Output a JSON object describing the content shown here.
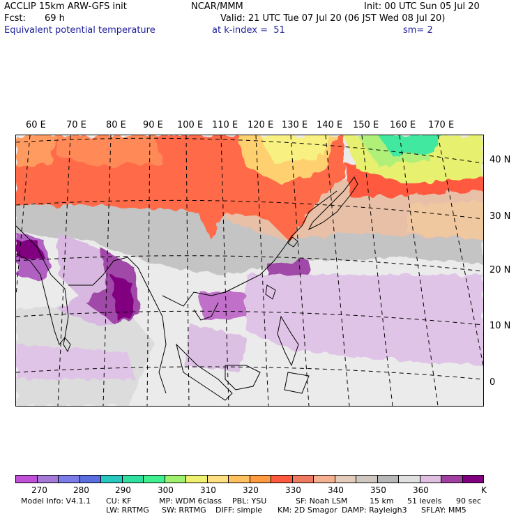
{
  "header": {
    "model": "ACCLIP 15km ARW-GFS init",
    "org": "NCAR/MMM",
    "init": "Init: 00 UTC Sun 05 Jul 20",
    "fcst_label": "Fcst:",
    "fcst_value": "69 h",
    "valid": "Valid: 21 UTC Tue 07 Jul 20 (06 JST Wed 08 Jul 20)",
    "field": "Equivalent potential temperature",
    "level": "at k-index =  51",
    "smooth": "sm= 2"
  },
  "map": {
    "lon_labels": [
      "60 E",
      "70 E",
      "80 E",
      "90 E",
      "100 E",
      "110 E",
      "120 E",
      "130 E",
      "140 E",
      "150 E",
      "160 E",
      "170 E"
    ],
    "lat_labels": [
      "40 N",
      "30 N",
      "20 N",
      "10 N",
      "0"
    ]
  },
  "colorbar": {
    "colors": [
      "#c050d8",
      "#a47ad6",
      "#7c7ce8",
      "#5a6ee0",
      "#28c8c0",
      "#30e0a0",
      "#40f090",
      "#a0f070",
      "#f0f070",
      "#ffe080",
      "#ffc060",
      "#ff9a40",
      "#ff5a40",
      "#f07a60",
      "#f4b090",
      "#e4ccbc",
      "#d0c8c0",
      "#b8b8b8",
      "#e0e0e0",
      "#e0c0e0",
      "#a040a0",
      "#800080"
    ],
    "labels": [
      "270",
      "280",
      "290",
      "300",
      "310",
      "320",
      "330",
      "340",
      "350",
      "360"
    ],
    "unit": "K"
  },
  "footer": {
    "line1": [
      "Model Info: V4.1.1",
      "CU: KF",
      "MP: WDM 6class",
      "PBL: YSU",
      "SF: Noah LSM",
      "15 km",
      "51 levels",
      "90 sec"
    ],
    "line2": [
      "LW: RRTMG",
      "SW: RRTMG",
      "DIFF: simple",
      "KM: 2D Smagor",
      "DAMP: Rayleigh3",
      "SFLAY: MM5"
    ]
  }
}
